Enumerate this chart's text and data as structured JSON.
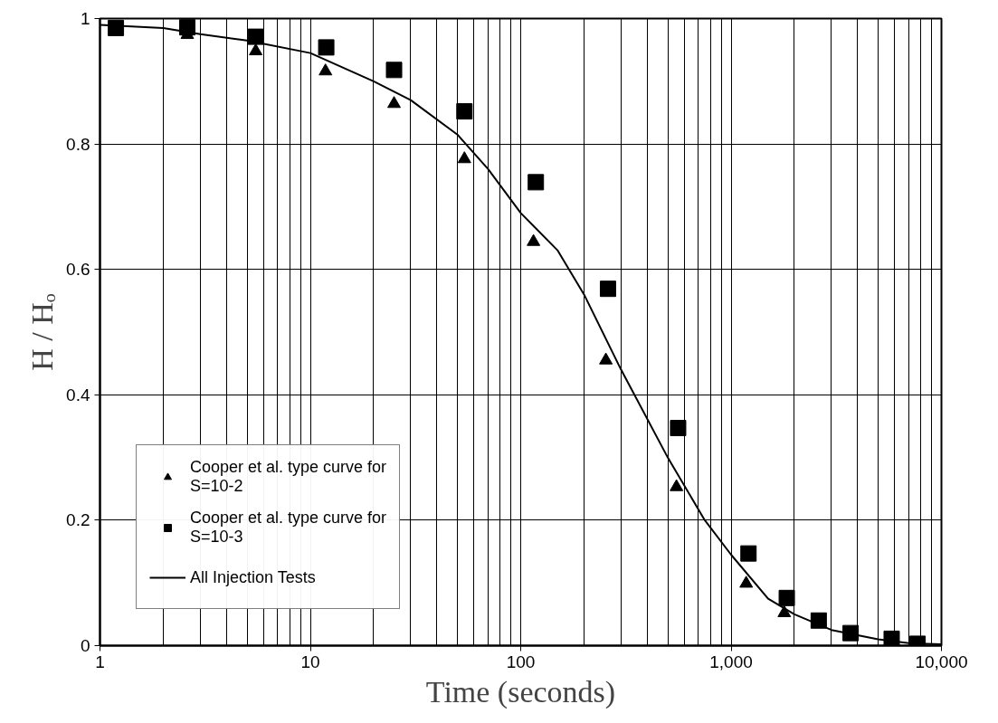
{
  "chart_data": {
    "type": "scatter",
    "xlabel": "Time (seconds)",
    "ylabel": "H / Hₒ",
    "log": "x",
    "grid": true,
    "legend": "bottom left",
    "xlim": [
      1,
      10000
    ],
    "ylim": [
      0,
      1
    ],
    "xticks": [
      1,
      10,
      100,
      {
        "value": 1000,
        "label": "1,000"
      },
      {
        "value": 10000,
        "label": "10,000"
      }
    ],
    "yticks": [
      0,
      0.2,
      0.4,
      0.6,
      0.8,
      1
    ],
    "series": [
      {
        "name": "Cooper et al. type curve for\nS=10-2",
        "marker": "triangle",
        "color": "#000000",
        "x": [
          2.6,
          5.5,
          11.8,
          25,
          54,
          115,
          254,
          550,
          1180,
          1790
        ],
        "values": [
          0.974,
          0.948,
          0.916,
          0.864,
          0.776,
          0.644,
          0.455,
          0.253,
          0.099,
          0.052
        ]
      },
      {
        "name": "Cooper et al. type curve for\nS=10-3",
        "marker": "square",
        "color": "#000000",
        "x": [
          1.19,
          2.6,
          5.5,
          11.9,
          25,
          54,
          118,
          260,
          560,
          1210,
          1840,
          2610,
          3700,
          5800,
          7700
        ],
        "values": [
          0.985,
          0.986,
          0.971,
          0.954,
          0.918,
          0.852,
          0.739,
          0.569,
          0.347,
          0.147,
          0.076,
          0.04,
          0.02,
          0.011,
          0.003
        ]
      },
      {
        "name": "All Injection Tests",
        "type": "line",
        "color": "#000000",
        "x": [
          1,
          2,
          3,
          5,
          10,
          20,
          30,
          50,
          70,
          100,
          150,
          200,
          300,
          500,
          750,
          1000,
          1500,
          2000,
          3000,
          5000,
          7000,
          10000
        ],
        "values": [
          0.99,
          0.985,
          0.975,
          0.965,
          0.945,
          0.9,
          0.87,
          0.815,
          0.76,
          0.69,
          0.63,
          0.56,
          0.44,
          0.3,
          0.2,
          0.145,
          0.075,
          0.05,
          0.025,
          0.01,
          0.004,
          0.002
        ]
      }
    ]
  }
}
